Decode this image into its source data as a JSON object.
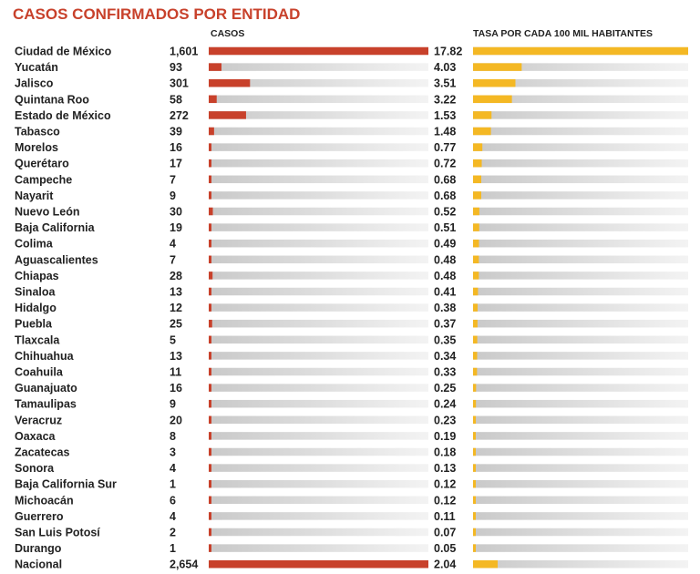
{
  "chart_data": {
    "type": "bar",
    "title": "CASOS CONFIRMADOS POR ENTIDAD",
    "series": [
      {
        "name": "CASOS",
        "color": "#c8412b",
        "values": [
          1601,
          93,
          301,
          58,
          272,
          39,
          16,
          17,
          7,
          9,
          30,
          19,
          4,
          7,
          28,
          13,
          12,
          25,
          5,
          13,
          11,
          16,
          9,
          20,
          8,
          3,
          4,
          1,
          6,
          4,
          2,
          1,
          2654
        ],
        "labels": [
          "1,601",
          "93",
          "301",
          "58",
          "272",
          "39",
          "16",
          "17",
          "7",
          "9",
          "30",
          "19",
          "4",
          "7",
          "28",
          "13",
          "12",
          "25",
          "5",
          "13",
          "11",
          "16",
          "9",
          "20",
          "8",
          "3",
          "4",
          "1",
          "6",
          "4",
          "2",
          "1",
          "2,654"
        ]
      },
      {
        "name": "TASA POR CADA 100 MIL HABITANTES",
        "color": "#f4b824",
        "values": [
          17.82,
          4.03,
          3.51,
          3.22,
          1.53,
          1.48,
          0.77,
          0.72,
          0.68,
          0.68,
          0.52,
          0.51,
          0.49,
          0.48,
          0.48,
          0.41,
          0.38,
          0.37,
          0.35,
          0.34,
          0.33,
          0.25,
          0.24,
          0.23,
          0.19,
          0.18,
          0.13,
          0.12,
          0.12,
          0.11,
          0.07,
          0.05,
          2.04
        ],
        "labels": [
          "17.82",
          "4.03",
          "3.51",
          "3.22",
          "1.53",
          "1.48",
          "0.77",
          "0.72",
          "0.68",
          "0.68",
          "0.52",
          "0.51",
          "0.49",
          "0.48",
          "0.48",
          "0.41",
          "0.38",
          "0.37",
          "0.35",
          "0.34",
          "0.33",
          "0.25",
          "0.24",
          "0.23",
          "0.19",
          "0.18",
          "0.13",
          "0.12",
          "0.12",
          "0.11",
          "0.07",
          "0.05",
          "2.04"
        ]
      }
    ],
    "categories": [
      "Ciudad de México",
      "Yucatán",
      "Jalisco",
      "Quintana Roo",
      "Estado de México",
      "Tabasco",
      "Morelos",
      "Querétaro",
      "Campeche",
      "Nayarit",
      "Nuevo León",
      "Baja California",
      "Colima",
      "Aguascalientes",
      "Chiapas",
      "Sinaloa",
      "Hidalgo",
      "Puebla",
      "Tlaxcala",
      "Chihuahua",
      "Coahuila",
      "Guanajuato",
      "Tamaulipas",
      "Veracruz",
      "Oaxaca",
      "Zacatecas",
      "Sonora",
      "Baja California Sur",
      "Michoacán",
      "Guerrero",
      "San Luis Potosí",
      "Durango",
      "Nacional"
    ],
    "orientation": "horizontal",
    "grid": false
  }
}
